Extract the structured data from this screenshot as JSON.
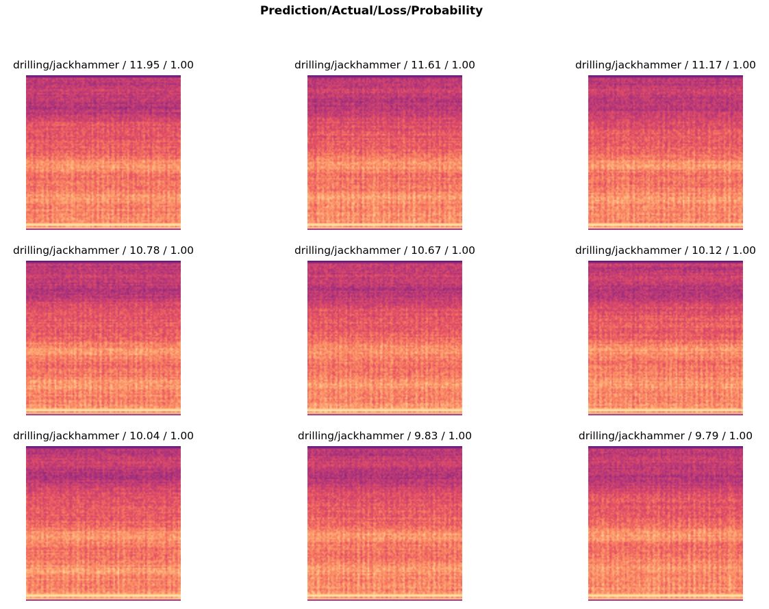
{
  "figure": {
    "title": "Prediction/Actual/Loss/Probability"
  },
  "chart_data": {
    "type": "heatmap",
    "title": "Prediction/Actual/Loss/Probability",
    "colormap": "magma",
    "axes_visible": false,
    "grid": false,
    "panels": [
      {
        "label": "drilling/jackhammer / 11.95 / 1.00",
        "prediction": "drilling/jackhammer",
        "loss": 11.95,
        "probability": 1.0
      },
      {
        "label": "drilling/jackhammer / 11.61 / 1.00",
        "prediction": "drilling/jackhammer",
        "loss": 11.61,
        "probability": 1.0
      },
      {
        "label": "drilling/jackhammer / 11.17 / 1.00",
        "prediction": "drilling/jackhammer",
        "loss": 11.17,
        "probability": 1.0
      },
      {
        "label": "drilling/jackhammer / 10.78 / 1.00",
        "prediction": "drilling/jackhammer",
        "loss": 10.78,
        "probability": 1.0
      },
      {
        "label": "drilling/jackhammer / 10.67 / 1.00",
        "prediction": "drilling/jackhammer",
        "loss": 10.67,
        "probability": 1.0
      },
      {
        "label": "drilling/jackhammer / 10.12 / 1.00",
        "prediction": "drilling/jackhammer",
        "loss": 10.12,
        "probability": 1.0
      },
      {
        "label": "drilling/jackhammer / 10.04 / 1.00",
        "prediction": "drilling/jackhammer",
        "loss": 10.04,
        "probability": 1.0
      },
      {
        "label": "drilling/jackhammer / 9.83 / 1.00",
        "prediction": "drilling/jackhammer",
        "loss": 9.83,
        "probability": 1.0
      },
      {
        "label": "drilling/jackhammer / 9.79 / 1.00",
        "prediction": "drilling/jackhammer",
        "loss": 9.79,
        "probability": 1.0
      }
    ]
  }
}
